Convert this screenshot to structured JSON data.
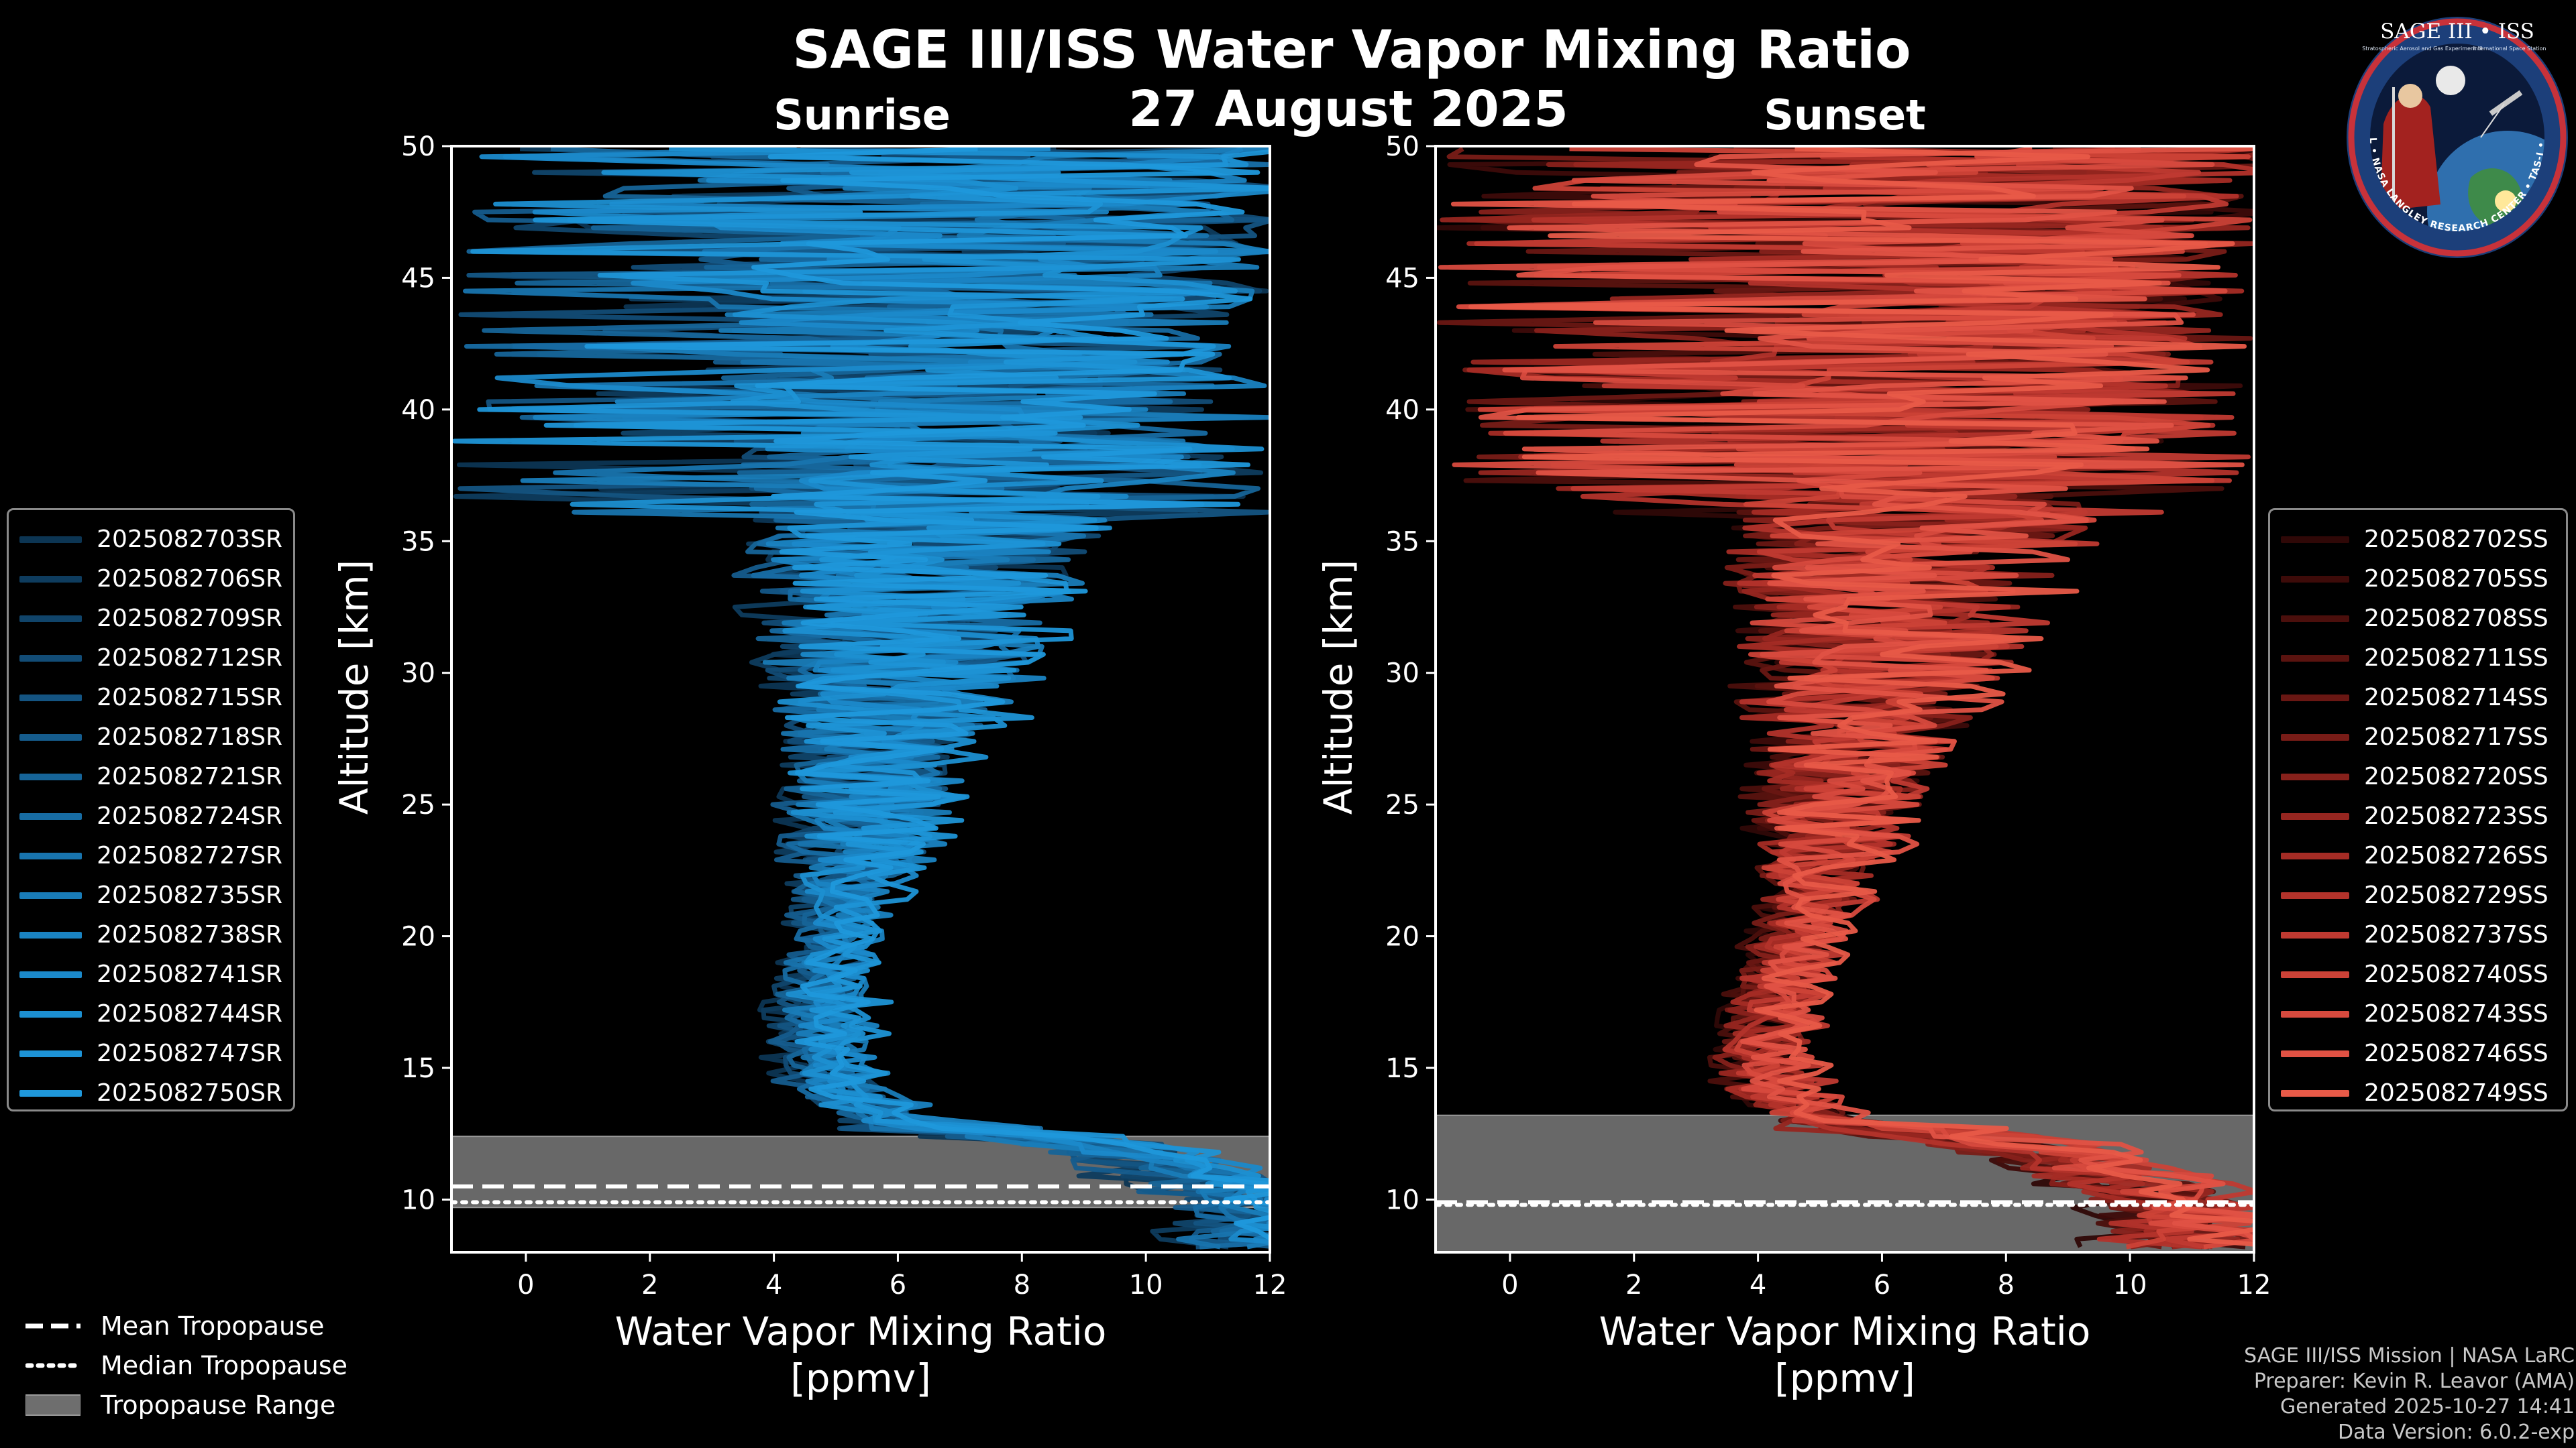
{
  "figure": {
    "title": "SAGE III/ISS Water Vapor Mixing Ratio",
    "date": "27 August 2025",
    "credits": [
      "SAGE III/ISS Mission | NASA LaRC",
      "Preparer: Kevin R. Leavor (AMA)",
      "Generated 2025-10-27 14:41",
      "Data Version: 6.0.2-exp"
    ],
    "logo": {
      "title": "SAGE III • ISS",
      "ring_text": "BALL • NASA LANGLEY RESEARCH CENTER • TAS-I • ESA",
      "subtitle_left": "Stratospheric Aerosol and Gas Experiment III",
      "subtitle_right": "International Space Station"
    },
    "tropopause_legend": [
      {
        "label": "Mean Tropopause",
        "style": "dashed"
      },
      {
        "label": "Median Tropopause",
        "style": "dotted"
      },
      {
        "label": "Tropopause Range",
        "style": "patch"
      }
    ],
    "colors": {
      "sunrise": "#1a90d4",
      "sunset": "#e85a48",
      "range": "#6e6e6e",
      "background": "#000000"
    }
  },
  "chart_data": [
    {
      "type": "line",
      "title": "Sunrise",
      "xlabel": "Water Vapor Mixing Ratio",
      "xlabel_units": "[ppmv]",
      "ylabel": "Altitude [km]",
      "xlim": [
        -1.2,
        12
      ],
      "ylim": [
        8,
        50
      ],
      "xticks": [
        0,
        2,
        4,
        6,
        8,
        10,
        12
      ],
      "yticks": [
        10,
        15,
        20,
        25,
        30,
        35,
        40,
        45,
        50
      ],
      "legend_position": "left",
      "tropopause": {
        "mean": 10.5,
        "median": 9.9,
        "range": [
          9.7,
          12.4
        ]
      },
      "profile_shape": {
        "altitudes_km": [
          10,
          12,
          13,
          14,
          15,
          16,
          18,
          20,
          22,
          25,
          28,
          30,
          33,
          36,
          40,
          45,
          50
        ],
        "median_ppmv": [
          11.5,
          9.0,
          6.0,
          5.2,
          4.9,
          4.8,
          4.8,
          5.0,
          5.3,
          5.6,
          5.9,
          6.0,
          6.3,
          6.6,
          7.0,
          7.4,
          7.5
        ]
      },
      "series": [
        {
          "name": "2025082703SR",
          "color": "#0c3553"
        },
        {
          "name": "2025082706SR",
          "color": "#0e3c5e"
        },
        {
          "name": "2025082709SR",
          "color": "#10446a"
        },
        {
          "name": "2025082712SR",
          "color": "#124c76"
        },
        {
          "name": "2025082715SR",
          "color": "#145482"
        },
        {
          "name": "2025082718SR",
          "color": "#155c8d"
        },
        {
          "name": "2025082721SR",
          "color": "#166498"
        },
        {
          "name": "2025082724SR",
          "color": "#176ca3"
        },
        {
          "name": "2025082727SR",
          "color": "#1874ae"
        },
        {
          "name": "2025082735SR",
          "color": "#197cb8"
        },
        {
          "name": "2025082738SR",
          "color": "#1a83c2"
        },
        {
          "name": "2025082741SR",
          "color": "#1b89ca"
        },
        {
          "name": "2025082744SR",
          "color": "#1c8fd1"
        },
        {
          "name": "2025082747SR",
          "color": "#1d93d6"
        },
        {
          "name": "2025082750SR",
          "color": "#1f98db"
        }
      ]
    },
    {
      "type": "line",
      "title": "Sunset",
      "xlabel": "Water Vapor Mixing Ratio",
      "xlabel_units": "[ppmv]",
      "ylabel": "Altitude [km]",
      "xlim": [
        -1.2,
        12
      ],
      "ylim": [
        8,
        50
      ],
      "xticks": [
        0,
        2,
        4,
        6,
        8,
        10,
        12
      ],
      "yticks": [
        10,
        15,
        20,
        25,
        30,
        35,
        40,
        45,
        50
      ],
      "legend_position": "right",
      "tropopause": {
        "mean": 9.9,
        "median": 9.8,
        "range": [
          8.0,
          13.2
        ]
      },
      "profile_shape": {
        "altitudes_km": [
          10,
          12,
          13,
          14,
          15,
          16,
          18,
          20,
          22,
          25,
          28,
          30,
          33,
          36,
          40,
          45,
          50
        ],
        "median_ppmv": [
          10.5,
          8.0,
          5.2,
          4.4,
          4.2,
          4.2,
          4.4,
          4.7,
          5.0,
          5.3,
          5.7,
          6.0,
          6.3,
          6.6,
          7.0,
          7.4,
          7.6
        ]
      },
      "series": [
        {
          "name": "2025082702SS",
          "color": "#2f0807"
        },
        {
          "name": "2025082705SS",
          "color": "#3d0b09"
        },
        {
          "name": "2025082708SS",
          "color": "#4b0f0c"
        },
        {
          "name": "2025082711SS",
          "color": "#5a130f"
        },
        {
          "name": "2025082714SS",
          "color": "#691713"
        },
        {
          "name": "2025082717SS",
          "color": "#781c17"
        },
        {
          "name": "2025082720SS",
          "color": "#87211b"
        },
        {
          "name": "2025082723SS",
          "color": "#962620"
        },
        {
          "name": "2025082726SS",
          "color": "#a52c25"
        },
        {
          "name": "2025082729SS",
          "color": "#b3332b"
        },
        {
          "name": "2025082737SS",
          "color": "#c03a31"
        },
        {
          "name": "2025082740SS",
          "color": "#cc4237"
        },
        {
          "name": "2025082743SS",
          "color": "#d74a3e"
        },
        {
          "name": "2025082746SS",
          "color": "#e05244"
        },
        {
          "name": "2025082749SS",
          "color": "#e85a48"
        }
      ]
    }
  ]
}
